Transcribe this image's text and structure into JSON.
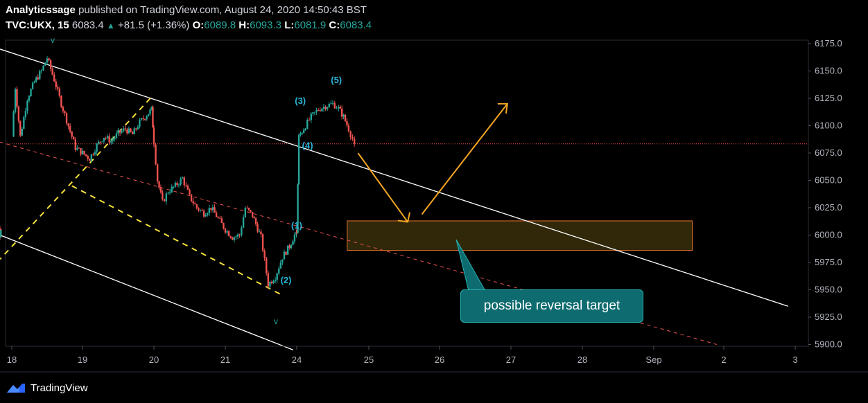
{
  "header": {
    "publisher": "Analyticssage",
    "published_text": "published on TradingView.com, August 24, 2020 14:50:43 BST",
    "symbol": "TVC:UKX, 15",
    "last": "6083.4",
    "change": "+81.5 (+1.36%)",
    "o_label": "O:",
    "o_value": "6089.8",
    "h_label": "H:",
    "h_value": "6093.3",
    "l_label": "L:",
    "l_value": "6081.9",
    "c_label": "C:",
    "c_value": "6083.4"
  },
  "colors": {
    "up": "#26a69a",
    "down": "#ef5350",
    "channel": "#ffffff",
    "wedge": "#f7e23a",
    "arrow": "#f5a623",
    "zone_border": "#e8722c",
    "zone_fill": "#3a2f0a",
    "callout_bg": "#0e6b6f",
    "label": "#29b6d8",
    "price_line": "#ef5350"
  },
  "annotations": {
    "callout": "possible reversal target",
    "wave_labels": [
      "(1)",
      "(2)",
      "(3)",
      "(4)",
      "(5)"
    ],
    "markers": [
      "v",
      "v"
    ]
  },
  "chart_data": {
    "type": "candlestick",
    "x_ticks": [
      "18",
      "19",
      "20",
      "21",
      "24",
      "25",
      "26",
      "27",
      "28",
      "Sep",
      "2",
      "3"
    ],
    "y_ticks": [
      "6175.0",
      "6150.0",
      "6125.0",
      "6100.0",
      "6075.0",
      "6050.0",
      "6025.0",
      "6000.0",
      "5975.0",
      "5950.0",
      "5925.0",
      "5900.0"
    ],
    "ylim": [
      5900,
      6175
    ],
    "current_price": 6083.4,
    "path": [
      [
        18.0,
        6090
      ],
      [
        18.05,
        6135
      ],
      [
        18.12,
        6090
      ],
      [
        18.22,
        6125
      ],
      [
        18.32,
        6140
      ],
      [
        18.42,
        6150
      ],
      [
        18.5,
        6162
      ],
      [
        18.6,
        6142
      ],
      [
        18.7,
        6120
      ],
      [
        18.8,
        6100
      ],
      [
        18.9,
        6080
      ],
      [
        19.0,
        6075
      ],
      [
        19.1,
        6070
      ],
      [
        19.2,
        6082
      ],
      [
        19.3,
        6090
      ],
      [
        19.4,
        6086
      ],
      [
        19.5,
        6093
      ],
      [
        19.6,
        6097
      ],
      [
        19.7,
        6092
      ],
      [
        19.8,
        6103
      ],
      [
        19.9,
        6110
      ],
      [
        19.97,
        6115
      ],
      [
        20.0,
        6085
      ],
      [
        20.05,
        6050
      ],
      [
        20.12,
        6030
      ],
      [
        20.2,
        6040
      ],
      [
        20.3,
        6045
      ],
      [
        20.4,
        6052
      ],
      [
        20.5,
        6035
      ],
      [
        20.6,
        6025
      ],
      [
        20.7,
        6020
      ],
      [
        20.8,
        6025
      ],
      [
        20.9,
        6015
      ],
      [
        21.0,
        6005
      ],
      [
        21.1,
        5998
      ],
      [
        21.2,
        6000
      ],
      [
        21.28,
        6025
      ],
      [
        21.38,
        6018
      ],
      [
        21.5,
        5998
      ],
      [
        21.6,
        5955
      ],
      [
        21.7,
        5962
      ],
      [
        21.8,
        5980
      ],
      [
        21.9,
        5990
      ],
      [
        21.97,
        6000
      ],
      [
        24.0,
        6003
      ],
      [
        24.03,
        6090
      ],
      [
        24.12,
        6100
      ],
      [
        24.2,
        6108
      ],
      [
        24.3,
        6115
      ],
      [
        24.4,
        6118
      ],
      [
        24.5,
        6120
      ],
      [
        24.58,
        6116
      ],
      [
        24.65,
        6108
      ],
      [
        24.72,
        6097
      ],
      [
        24.8,
        6083.4
      ]
    ],
    "wave_points": {
      "(1)": [
        24.0,
        6006
      ],
      "(2)": [
        21.85,
        5956
      ],
      "(3)": [
        24.05,
        6120
      ],
      "(4)": [
        24.15,
        6079
      ],
      "(5)": [
        24.55,
        6139
      ]
    },
    "channel_upper": [
      [
        17.97,
        6170
      ],
      [
        25.0,
        6082
      ],
      [
        28.0,
        6002
      ],
      [
        30.9,
        5935
      ]
    ],
    "channel_lower": [
      [
        17.97,
        6000
      ],
      [
        21.95,
        5895
      ]
    ],
    "mid_dashed": [
      [
        17.97,
        6085
      ],
      [
        29.9,
        5900
      ]
    ],
    "wedge_upper": [
      [
        19.95,
        6125
      ],
      [
        22.0,
        5978
      ]
    ],
    "wedge_lower": [
      [
        18.85,
        6045
      ],
      [
        21.8,
        5945
      ]
    ],
    "target_zone": {
      "x0": 24.7,
      "x1": 29.55,
      "y0": 5986,
      "y1": 6013
    },
    "projected_path": [
      [
        24.85,
        6075
      ],
      [
        25.55,
        6012
      ],
      [
        25.75,
        6019
      ],
      [
        26.95,
        6120
      ]
    ]
  }
}
